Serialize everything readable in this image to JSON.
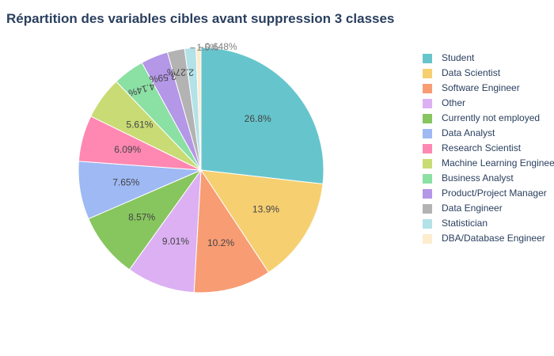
{
  "chart_data": {
    "type": "pie",
    "title": "Répartition des variables cibles avant suppression 3 classes",
    "categories": [
      "Student",
      "Data Scientist",
      "Software Engineer",
      "Other",
      "Currently not employed",
      "Data Analyst",
      "Research Scientist",
      "Machine Learning Engineer",
      "Business Analyst",
      "Product/Project Manager",
      "Data Engineer",
      "Statistician",
      "DBA/Database Engineer"
    ],
    "values": [
      26.8,
      13.9,
      10.2,
      9.01,
      8.57,
      7.65,
      6.09,
      5.61,
      4.14,
      3.59,
      2.27,
      1.5,
      0.648
    ],
    "labels": [
      "26.8%",
      "13.9%",
      "10.2%",
      "9.01%",
      "8.57%",
      "7.65%",
      "6.09%",
      "5.61%",
      "4.14%",
      "3.59%",
      "2.27%",
      "1.5%",
      "0.648%"
    ],
    "colors": [
      "#66c5cc",
      "#f6cf71",
      "#f89c74",
      "#dcb0f2",
      "#87c55f",
      "#9eb9f3",
      "#fe88b1",
      "#c9db74",
      "#8be0a4",
      "#b497e7",
      "#b3b3b3",
      "#b3e2e8",
      "#fdecce"
    ],
    "direction": "clockwise",
    "start": "12 o'clock",
    "legend_position": "right"
  }
}
